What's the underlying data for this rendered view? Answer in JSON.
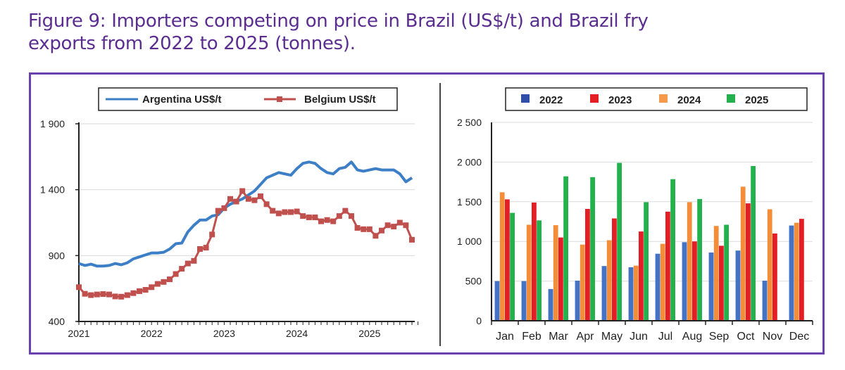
{
  "figure": {
    "title_line1": "Figure 9: Importers competing on price in Brazil (US$/t) and Brazil fry",
    "title_line2": "exports from 2022 to 2025 (tonnes).",
    "accent_color": "#5b2d91"
  },
  "chart_data": [
    {
      "type": "line",
      "title": "Importers competing on price in Brazil (US$/t)",
      "xlabel": "",
      "ylabel": "US$/t",
      "ylim": [
        400,
        1900
      ],
      "yticks": [
        "1 900",
        "1 400",
        "900",
        "400"
      ],
      "ytick_values": [
        1900,
        1400,
        900,
        400
      ],
      "xtick_labels": [
        "2021",
        "2022",
        "2023",
        "2024",
        "2025"
      ],
      "x_start": "2021-01",
      "x_frequency": "monthly",
      "grid": true,
      "legend_position": "top",
      "series": [
        {
          "name": "Argentina US$/t",
          "color": "#3d7fc6",
          "marker": "none",
          "values": [
            840,
            825,
            835,
            820,
            820,
            825,
            840,
            830,
            845,
            875,
            890,
            905,
            920,
            920,
            925,
            950,
            990,
            995,
            1080,
            1130,
            1170,
            1170,
            1200,
            1210,
            1260,
            1290,
            1310,
            1330,
            1360,
            1390,
            1440,
            1490,
            1510,
            1530,
            1520,
            1510,
            1560,
            1600,
            1610,
            1600,
            1560,
            1530,
            1520,
            1560,
            1570,
            1610,
            1550,
            1540,
            1550,
            1560,
            1550,
            1550,
            1550,
            1520,
            1460,
            1490
          ]
        },
        {
          "name": "Belgium US$/t",
          "color": "#c0504d",
          "marker": "square",
          "values": [
            660,
            610,
            600,
            605,
            608,
            605,
            590,
            588,
            600,
            615,
            630,
            640,
            660,
            685,
            700,
            720,
            760,
            800,
            840,
            860,
            950,
            960,
            1060,
            1240,
            1260,
            1330,
            1310,
            1390,
            1330,
            1320,
            1350,
            1290,
            1240,
            1220,
            1230,
            1230,
            1235,
            1200,
            1190,
            1190,
            1160,
            1170,
            1160,
            1200,
            1240,
            1200,
            1110,
            1100,
            1100,
            1050,
            1090,
            1130,
            1120,
            1150,
            1130,
            1020
          ]
        }
      ]
    },
    {
      "type": "bar",
      "title": "Brazil fry exports from 2022 to 2025 (tonnes)",
      "xlabel": "",
      "ylabel": "tonnes",
      "ylim": [
        0,
        2500
      ],
      "yticks": [
        "2 500",
        "2 000",
        "1 500",
        "1 000",
        "500",
        "0"
      ],
      "ytick_values": [
        2500,
        2000,
        1500,
        1000,
        500,
        0
      ],
      "categories": [
        "Jan",
        "Feb",
        "Mar",
        "Apr",
        "May",
        "Jun",
        "Jul",
        "Aug",
        "Sep",
        "Oct",
        "Nov",
        "Dec"
      ],
      "grid": true,
      "legend_position": "top",
      "bar_order": [
        "2022",
        "2024",
        "2023",
        "2025"
      ],
      "series": [
        {
          "name": "2022",
          "color": "#4472c4",
          "values": [
            500,
            500,
            400,
            505,
            690,
            675,
            845,
            990,
            860,
            885,
            505,
            1200
          ]
        },
        {
          "name": "2023",
          "color": "#e31e24",
          "values": [
            1530,
            1490,
            1050,
            1410,
            1290,
            1125,
            1375,
            1000,
            945,
            1480,
            1100,
            1285
          ]
        },
        {
          "name": "2024",
          "color": "#f28e3a",
          "values": [
            1620,
            1210,
            1205,
            960,
            1015,
            695,
            970,
            1495,
            1195,
            1690,
            1405,
            1235
          ]
        },
        {
          "name": "2025",
          "color": "#22b14c",
          "values": [
            1360,
            1265,
            1820,
            1810,
            1990,
            1495,
            1785,
            1535,
            1210,
            1950,
            null,
            null
          ]
        }
      ]
    }
  ]
}
